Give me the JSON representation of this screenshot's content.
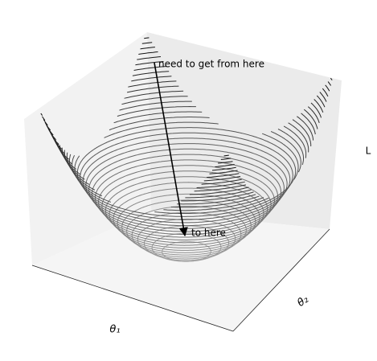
{
  "chart_data": {
    "type": "contour3d",
    "xlabel": "θ₁",
    "ylabel": "θ₂",
    "zlabel": "L",
    "annotations": [
      "need to get from here",
      "to here"
    ]
  }
}
